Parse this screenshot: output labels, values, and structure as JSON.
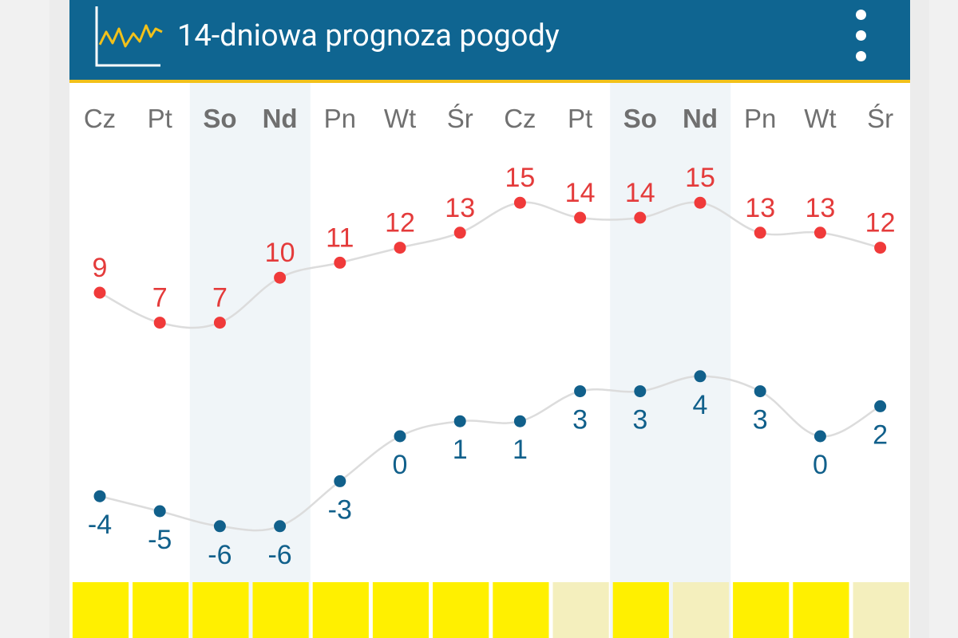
{
  "header": {
    "title": "14-dniowa prognoza pogody",
    "icon": "line-chart-icon",
    "menu_icon": "more-vertical-icon"
  },
  "colors": {
    "header_bg": "#0f6591",
    "header_accent": "#f2c11a",
    "high_color": "#f03a3a",
    "low_color": "#11608b",
    "weekend_shade": "#f0f5f8",
    "bar_strong": "#fff000",
    "bar_pale": "#f4efbd"
  },
  "chart_data": {
    "type": "line",
    "categories": [
      "Cz",
      "Pt",
      "So",
      "Nd",
      "Pn",
      "Wt",
      "Śr",
      "Cz",
      "Pt",
      "So",
      "Nd",
      "Pn",
      "Wt",
      "Śr"
    ],
    "weekend": [
      false,
      false,
      true,
      true,
      false,
      false,
      false,
      false,
      false,
      true,
      true,
      false,
      false,
      false
    ],
    "series": [
      {
        "values": [
          9,
          7,
          7,
          10,
          11,
          12,
          13,
          15,
          14,
          14,
          15,
          13,
          13,
          12
        ]
      },
      {
        "values": [
          -4,
          -5,
          -6,
          -6,
          -3,
          0,
          1,
          1,
          3,
          3,
          4,
          3,
          0,
          2
        ]
      }
    ],
    "bar_strip": [
      "strong",
      "strong",
      "strong",
      "strong",
      "strong",
      "strong",
      "strong",
      "strong",
      "pale",
      "strong",
      "pale",
      "strong",
      "strong",
      "pale"
    ]
  }
}
